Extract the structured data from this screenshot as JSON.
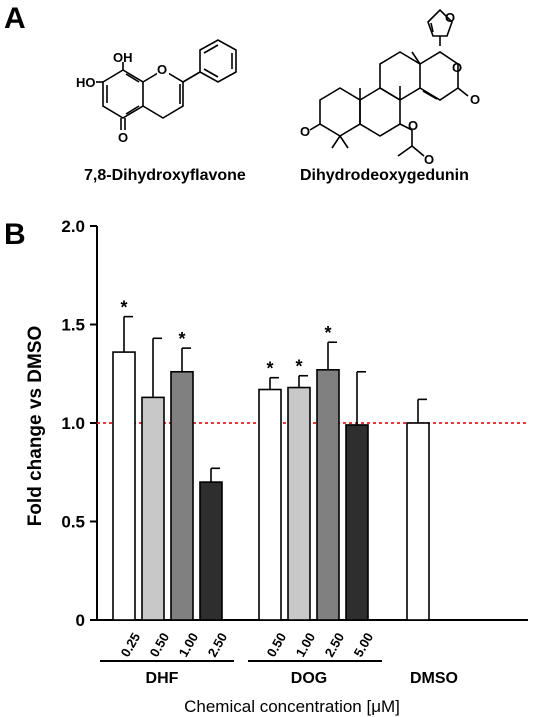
{
  "panels": {
    "a_label": "A",
    "b_label": "B"
  },
  "structures": {
    "compound1": {
      "name": "7,8-Dihydroxyflavone",
      "atoms": [
        "OH",
        "HO",
        "O",
        "O"
      ]
    },
    "compound2": {
      "name": "Dihydrodeoxygedunin",
      "atoms": [
        "O",
        "O",
        "O",
        "O",
        "O",
        "O"
      ]
    }
  },
  "chart_data": {
    "type": "bar",
    "title": "",
    "ylabel": "Fold change vs DMSO",
    "xlabel": "Chemical concentration [μM]",
    "ylim": [
      0,
      2.0
    ],
    "yticks": [
      "0",
      "0.5",
      "1.0",
      "1.5",
      "2.0"
    ],
    "reference_line": {
      "y": 1.0,
      "color": "#e02020",
      "style": "dotted"
    },
    "groups": [
      {
        "name": "DHF",
        "bars": [
          {
            "label": "0.25",
            "value": 1.36,
            "error": 0.18,
            "significant": true,
            "color": "#ffffff"
          },
          {
            "label": "0.50",
            "value": 1.13,
            "error": 0.3,
            "significant": false,
            "color": "#c8c8c8"
          },
          {
            "label": "1.00",
            "value": 1.26,
            "error": 0.12,
            "significant": true,
            "color": "#808080"
          },
          {
            "label": "2.50",
            "value": 0.7,
            "error": 0.07,
            "significant": false,
            "color": "#2e2e2e"
          }
        ]
      },
      {
        "name": "DOG",
        "bars": [
          {
            "label": "0.50",
            "value": 1.17,
            "error": 0.06,
            "significant": true,
            "color": "#ffffff"
          },
          {
            "label": "1.00",
            "value": 1.18,
            "error": 0.06,
            "significant": true,
            "color": "#c8c8c8"
          },
          {
            "label": "2.50",
            "value": 1.27,
            "error": 0.14,
            "significant": true,
            "color": "#808080"
          },
          {
            "label": "5.00",
            "value": 0.99,
            "error": 0.27,
            "significant": false,
            "color": "#2e2e2e"
          }
        ]
      },
      {
        "name": "DMSO",
        "bars": [
          {
            "label": "",
            "value": 1.0,
            "error": 0.12,
            "significant": false,
            "color": "#ffffff"
          }
        ]
      }
    ],
    "significance_marker": "*"
  }
}
